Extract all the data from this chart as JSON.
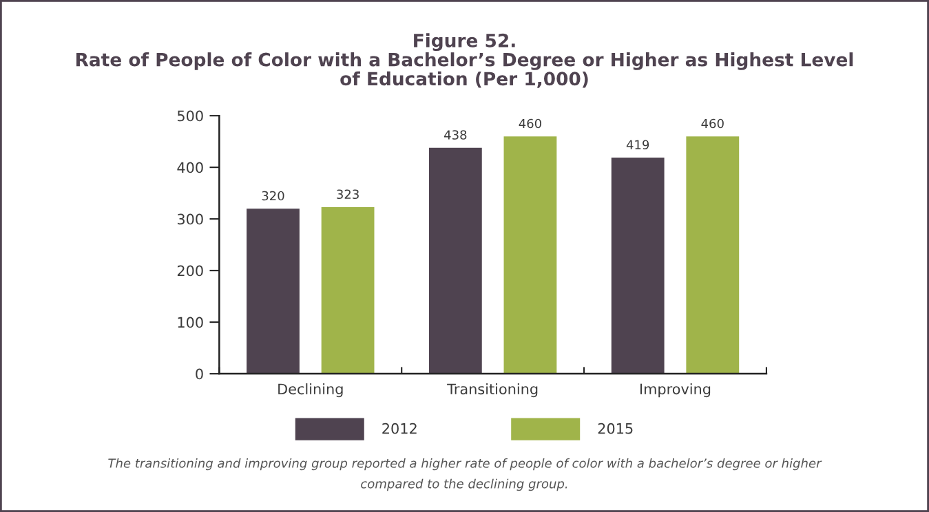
{
  "chart_data": {
    "type": "bar",
    "title": "Figure 52.\nRate of People of Color with a Bachelor’s Degree or Higher as Highest Level\nof Education (Per 1,000)",
    "categories": [
      "Declining",
      "Transitioning",
      "Improving"
    ],
    "series": [
      {
        "name": "2012",
        "color": "#4f4350",
        "values": [
          320,
          438,
          419
        ]
      },
      {
        "name": "2015",
        "color": "#a0b44a",
        "values": [
          323,
          460,
          460
        ]
      }
    ],
    "ylim": [
      0,
      500
    ],
    "yticks": [
      0,
      100,
      200,
      300,
      400,
      500
    ],
    "grid": false,
    "legend": "bottom",
    "data_labels": true,
    "annotations": [
      "The transitioning and improving group reported a higher rate of people of color with a bachelor’s degree or higher\ncompared to the declining group."
    ]
  }
}
